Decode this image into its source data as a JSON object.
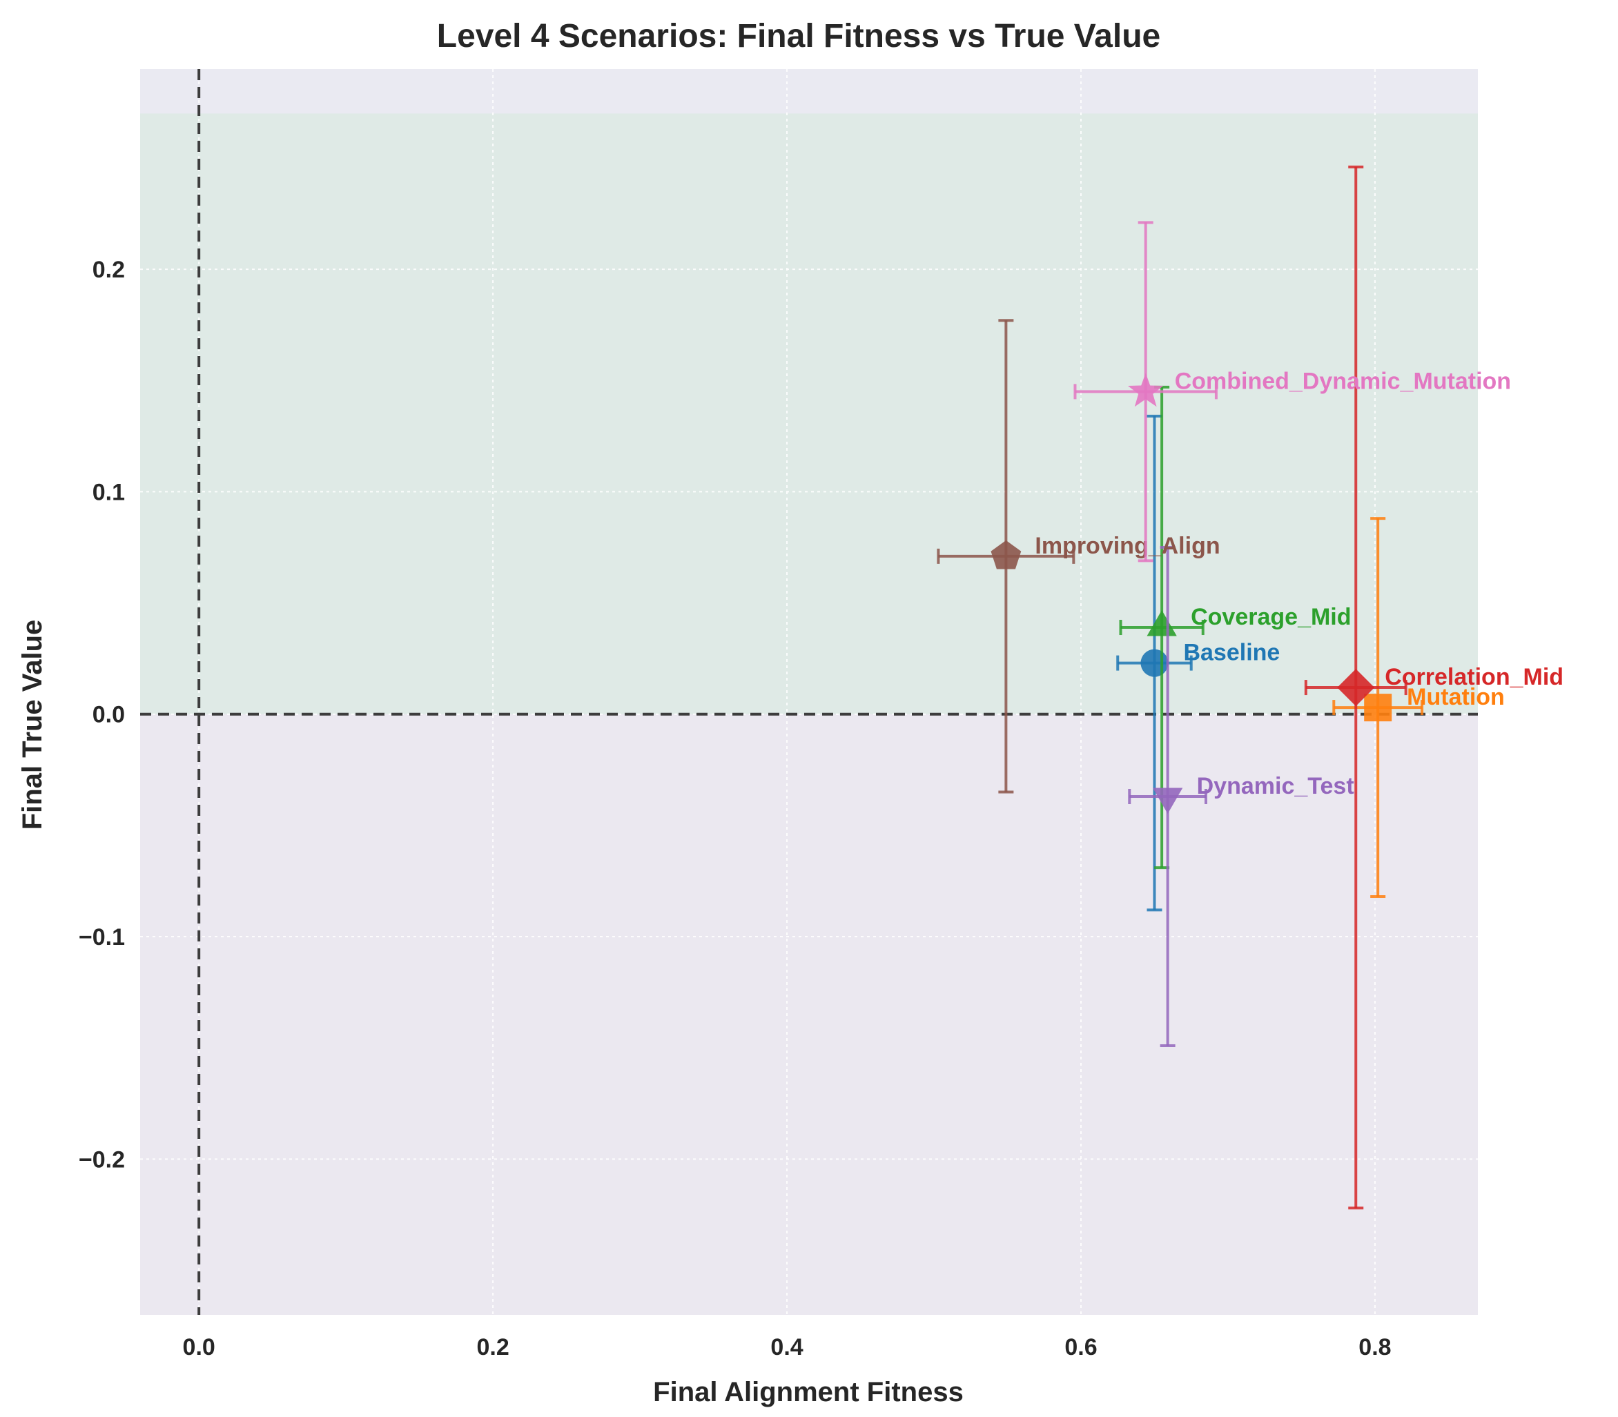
{
  "chart_data": {
    "type": "scatter",
    "title": "Level 4 Scenarios: Final Fitness vs True Value",
    "xlabel": "Final Alignment Fitness",
    "ylabel": "Final True Value",
    "xlim": [
      -0.04,
      0.87
    ],
    "ylim": [
      -0.27,
      0.29
    ],
    "xticks": [
      0.0,
      0.2,
      0.4,
      0.6,
      0.8
    ],
    "xtick_labels": [
      "0.0",
      "0.2",
      "0.4",
      "0.6",
      "0.8"
    ],
    "yticks": [
      -0.2,
      -0.1,
      0.0,
      0.1,
      0.2
    ],
    "ytick_labels": [
      "−0.2",
      "−0.1",
      "0.0",
      "0.1",
      "0.2"
    ],
    "grid": true,
    "reference_lines": {
      "x": 0.0,
      "y": 0.0
    },
    "shaded_region_top": 0.27,
    "colors": {
      "plot_bg": "#eaeaf2",
      "positive_band": "#dfeae6",
      "negative_band": "#ebe8f0",
      "ref_line": "#3d3d3d",
      "grid": "#ffffff"
    },
    "series": [
      {
        "name": "Baseline",
        "x": 0.65,
        "y": 0.023,
        "xerr": 0.025,
        "yerr": 0.111,
        "color": "#1f77b4",
        "marker": "circle"
      },
      {
        "name": "Mutation",
        "x": 0.802,
        "y": 0.003,
        "xerr": 0.03,
        "yerr": 0.085,
        "color": "#ff7f0e",
        "marker": "square"
      },
      {
        "name": "Coverage_Mid",
        "x": 0.655,
        "y": 0.039,
        "xerr": 0.028,
        "yerr": 0.108,
        "color": "#2ca02c",
        "marker": "triangle-up"
      },
      {
        "name": "Correlation_Mid",
        "x": 0.787,
        "y": 0.012,
        "xerr": 0.034,
        "yerr": 0.234,
        "color": "#d62728",
        "marker": "diamond"
      },
      {
        "name": "Dynamic_Test",
        "x": 0.659,
        "y": -0.037,
        "xerr": 0.026,
        "yerr": 0.112,
        "color": "#9467bd",
        "marker": "triangle-down"
      },
      {
        "name": "Improving_Align",
        "x": 0.549,
        "y": 0.071,
        "xerr": 0.046,
        "yerr": 0.106,
        "color": "#8c564b",
        "marker": "pentagon"
      },
      {
        "name": "Combined_Dynamic_Mutation",
        "x": 0.644,
        "y": 0.145,
        "xerr": 0.048,
        "yerr": 0.076,
        "color": "#e377c2",
        "marker": "star"
      }
    ]
  }
}
